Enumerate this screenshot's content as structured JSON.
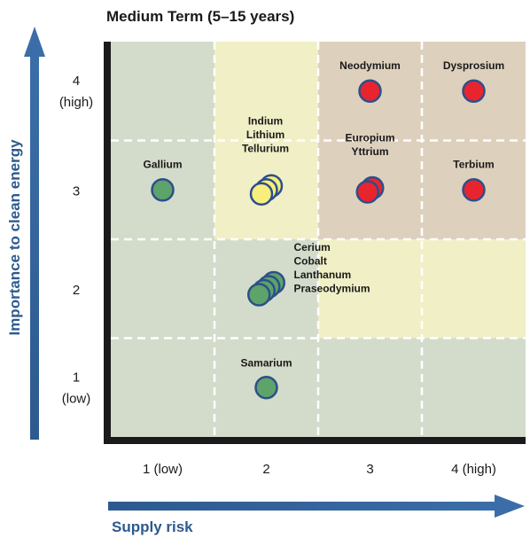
{
  "chart_data": {
    "type": "scatter",
    "title": "Medium Term (5–15 years)",
    "xlabel": "Supply risk",
    "ylabel": "Importance to clean energy",
    "xlim": [
      0.5,
      4.5
    ],
    "ylim": [
      0.5,
      4.5
    ],
    "x_ticks": [
      {
        "value": 1,
        "lines": [
          "1 (low)"
        ]
      },
      {
        "value": 2,
        "lines": [
          "2"
        ]
      },
      {
        "value": 3,
        "lines": [
          "3"
        ]
      },
      {
        "value": 4,
        "lines": [
          "4 (high)"
        ]
      }
    ],
    "y_ticks": [
      {
        "value": 1,
        "lines": [
          "1",
          "(low)"
        ]
      },
      {
        "value": 2,
        "lines": [
          "2"
        ]
      },
      {
        "value": 3,
        "lines": [
          "3"
        ]
      },
      {
        "value": 4,
        "lines": [
          "4",
          "(high)"
        ]
      }
    ],
    "zones": [
      {
        "x": [
          0.5,
          1.5
        ],
        "y": [
          0.5,
          4.5
        ],
        "level": "low"
      },
      {
        "x": [
          1.5,
          2.5
        ],
        "y": [
          0.5,
          2.5
        ],
        "level": "low"
      },
      {
        "x": [
          1.5,
          2.5
        ],
        "y": [
          2.5,
          4.5
        ],
        "level": "near-critical"
      },
      {
        "x": [
          2.5,
          4.5
        ],
        "y": [
          0.5,
          1.5
        ],
        "level": "low"
      },
      {
        "x": [
          2.5,
          4.5
        ],
        "y": [
          1.5,
          2.5
        ],
        "level": "near-critical"
      },
      {
        "x": [
          2.5,
          4.5
        ],
        "y": [
          2.5,
          4.5
        ],
        "level": "critical"
      }
    ],
    "zone_colors": {
      "low": "#d3dbcb",
      "near-critical": "#f0efc6",
      "critical": "#ddd0bd"
    },
    "category_colors": {
      "low": "#5da36a",
      "near-critical": "#f7ee7c",
      "critical": "#e8242f"
    },
    "points": [
      {
        "name": "Gallium",
        "x": 1.0,
        "y": 3.0,
        "category": "low"
      },
      {
        "name": "Indium",
        "x": 2.0,
        "y": 3.0,
        "category": "near-critical"
      },
      {
        "name": "Lithium",
        "x": 2.0,
        "y": 3.0,
        "category": "near-critical"
      },
      {
        "name": "Tellurium",
        "x": 2.0,
        "y": 3.0,
        "category": "near-critical"
      },
      {
        "name": "Neodymium",
        "x": 3.0,
        "y": 4.0,
        "category": "critical"
      },
      {
        "name": "Dysprosium",
        "x": 4.0,
        "y": 4.0,
        "category": "critical"
      },
      {
        "name": "Europium",
        "x": 3.0,
        "y": 3.0,
        "category": "critical"
      },
      {
        "name": "Yttrium",
        "x": 3.0,
        "y": 3.0,
        "category": "critical"
      },
      {
        "name": "Terbium",
        "x": 4.0,
        "y": 3.0,
        "category": "critical"
      },
      {
        "name": "Cerium",
        "x": 2.0,
        "y": 2.0,
        "category": "low"
      },
      {
        "name": "Cobalt",
        "x": 2.0,
        "y": 2.0,
        "category": "low"
      },
      {
        "name": "Lanthanum",
        "x": 2.0,
        "y": 2.0,
        "category": "low"
      },
      {
        "name": "Praseodymium",
        "x": 2.0,
        "y": 2.0,
        "category": "low"
      },
      {
        "name": "Samarium",
        "x": 2.0,
        "y": 1.0,
        "category": "low"
      }
    ],
    "axis_color": "#2d5a8e",
    "grid": "dashed"
  }
}
